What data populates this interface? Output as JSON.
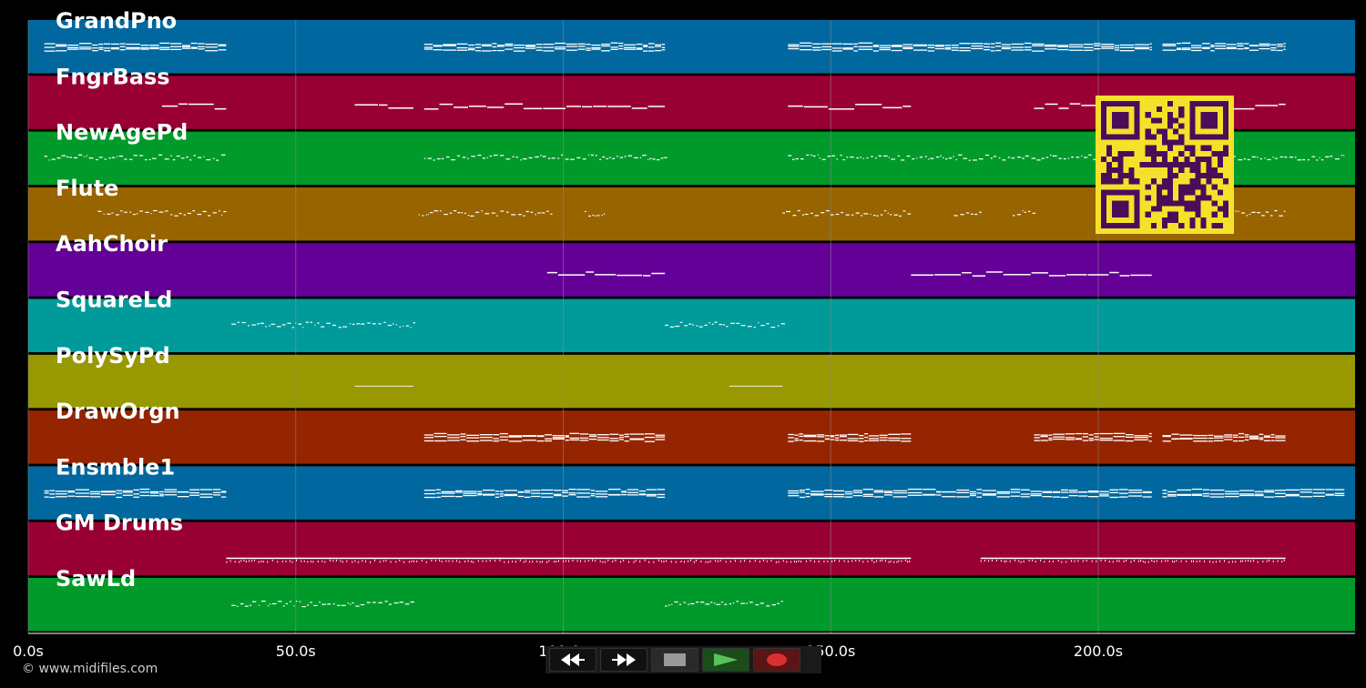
{
  "player": {
    "copyright": "© www.midifiles.com",
    "grid_color": "#8a8a8a",
    "note_color": "#ffffff",
    "timeline": {
      "duration_s": 248,
      "ticks": [
        {
          "value": 0,
          "label": "0.0s"
        },
        {
          "value": 50,
          "label": "50.0s"
        },
        {
          "value": 100,
          "label": "100.0s"
        },
        {
          "value": 150,
          "label": "150.0s"
        },
        {
          "value": 200,
          "label": "200.0s"
        }
      ]
    },
    "tracks": [
      {
        "name": "GrandPno",
        "color": "#00689e",
        "segments": [
          [
            3,
            37
          ],
          [
            74,
            119
          ],
          [
            142,
            210
          ],
          [
            212,
            235
          ]
        ],
        "style": "chords"
      },
      {
        "name": "FngrBass",
        "color": "#980033",
        "segments": [
          [
            25,
            37
          ],
          [
            61,
            72
          ],
          [
            74,
            119
          ],
          [
            142,
            165
          ],
          [
            188,
            207
          ],
          [
            212,
            235
          ]
        ],
        "style": "line"
      },
      {
        "name": "NewAgePd",
        "color": "#009a2a",
        "segments": [
          [
            3,
            37
          ],
          [
            74,
            119
          ],
          [
            142,
            246
          ]
        ],
        "style": "dots"
      },
      {
        "name": "Flute",
        "color": "#976400",
        "segments": [
          [
            13,
            37
          ],
          [
            73,
            98
          ],
          [
            104,
            108
          ],
          [
            141,
            165
          ],
          [
            173,
            178
          ],
          [
            184,
            188
          ],
          [
            211,
            235
          ]
        ],
        "style": "dots"
      },
      {
        "name": "AahChoir",
        "color": "#640097",
        "segments": [
          [
            97,
            119
          ],
          [
            165,
            210
          ]
        ],
        "style": "line"
      },
      {
        "name": "SquareLd",
        "color": "#009a9a",
        "segments": [
          [
            38,
            72
          ],
          [
            119,
            141
          ]
        ],
        "style": "dots"
      },
      {
        "name": "PolySyPd",
        "color": "#989800",
        "segments": [
          [
            61,
            72
          ],
          [
            131,
            141
          ]
        ],
        "style": "thin"
      },
      {
        "name": "DrawOrgn",
        "color": "#952500",
        "segments": [
          [
            74,
            119
          ],
          [
            142,
            165
          ],
          [
            188,
            210
          ],
          [
            212,
            235
          ]
        ],
        "style": "chords"
      },
      {
        "name": "Ensmble1",
        "color": "#00689e",
        "segments": [
          [
            3,
            37
          ],
          [
            74,
            119
          ],
          [
            142,
            210
          ],
          [
            212,
            235
          ],
          [
            235,
            246
          ]
        ],
        "style": "chords"
      },
      {
        "name": "GM Drums",
        "color": "#980033",
        "segments": [
          [
            37,
            165
          ],
          [
            178,
            235
          ]
        ],
        "style": "drums"
      },
      {
        "name": "SawLd",
        "color": "#009a2a",
        "segments": [
          [
            38,
            72
          ],
          [
            119,
            141
          ]
        ],
        "style": "dots"
      }
    ]
  },
  "transport": {
    "buttons": [
      {
        "name": "rewind-button",
        "icon": "rewind-icon"
      },
      {
        "name": "fast-forward-button",
        "icon": "fast-forward-icon"
      },
      {
        "name": "stop-button",
        "icon": "stop-icon"
      },
      {
        "name": "play-button",
        "icon": "play-icon"
      },
      {
        "name": "record-button",
        "icon": "record-icon"
      }
    ]
  }
}
